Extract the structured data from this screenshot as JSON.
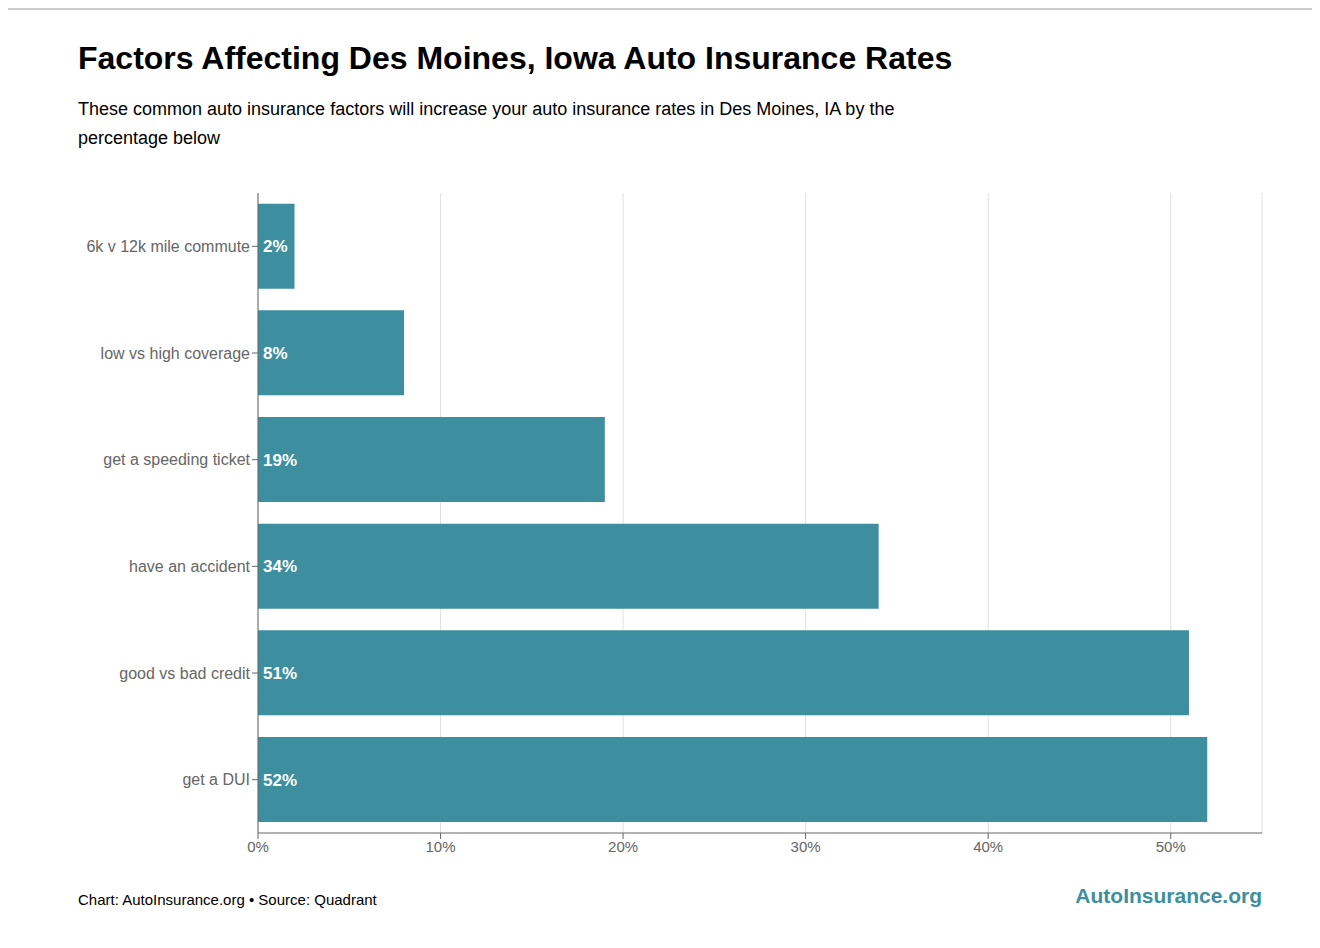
{
  "chart_data": {
    "type": "bar",
    "title": "Factors Affecting Des Moines, Iowa Auto Insurance Rates",
    "subtitle": "These common auto insurance factors will increase your auto insurance rates in Des Moines, IA by the\npercentage below",
    "annotations": [
      "Chart: AutoInsurance.org • Source: Quadrant",
      "AutoInsurance.org"
    ],
    "categories": [
      "6k v 12k mile commute",
      "low vs high coverage",
      "get a speeding ticket",
      "have an accident",
      "good vs bad credit",
      "get a DUI"
    ],
    "values": [
      2,
      8,
      19,
      34,
      51,
      52
    ],
    "value_labels": [
      "2%",
      "8%",
      "19%",
      "34%",
      "51%",
      "52%"
    ],
    "color": "#3d8fa0",
    "orientation": "horizontal",
    "xlim": [
      0,
      55
    ],
    "xticks": [
      {
        "value": 0,
        "label": "0%"
      },
      {
        "value": 10,
        "label": "10%"
      },
      {
        "value": 20,
        "label": "20%"
      },
      {
        "value": 30,
        "label": "30%"
      },
      {
        "value": 40,
        "label": "40%"
      },
      {
        "value": 50,
        "label": "50%"
      }
    ],
    "grid": true,
    "data_labels": true
  }
}
